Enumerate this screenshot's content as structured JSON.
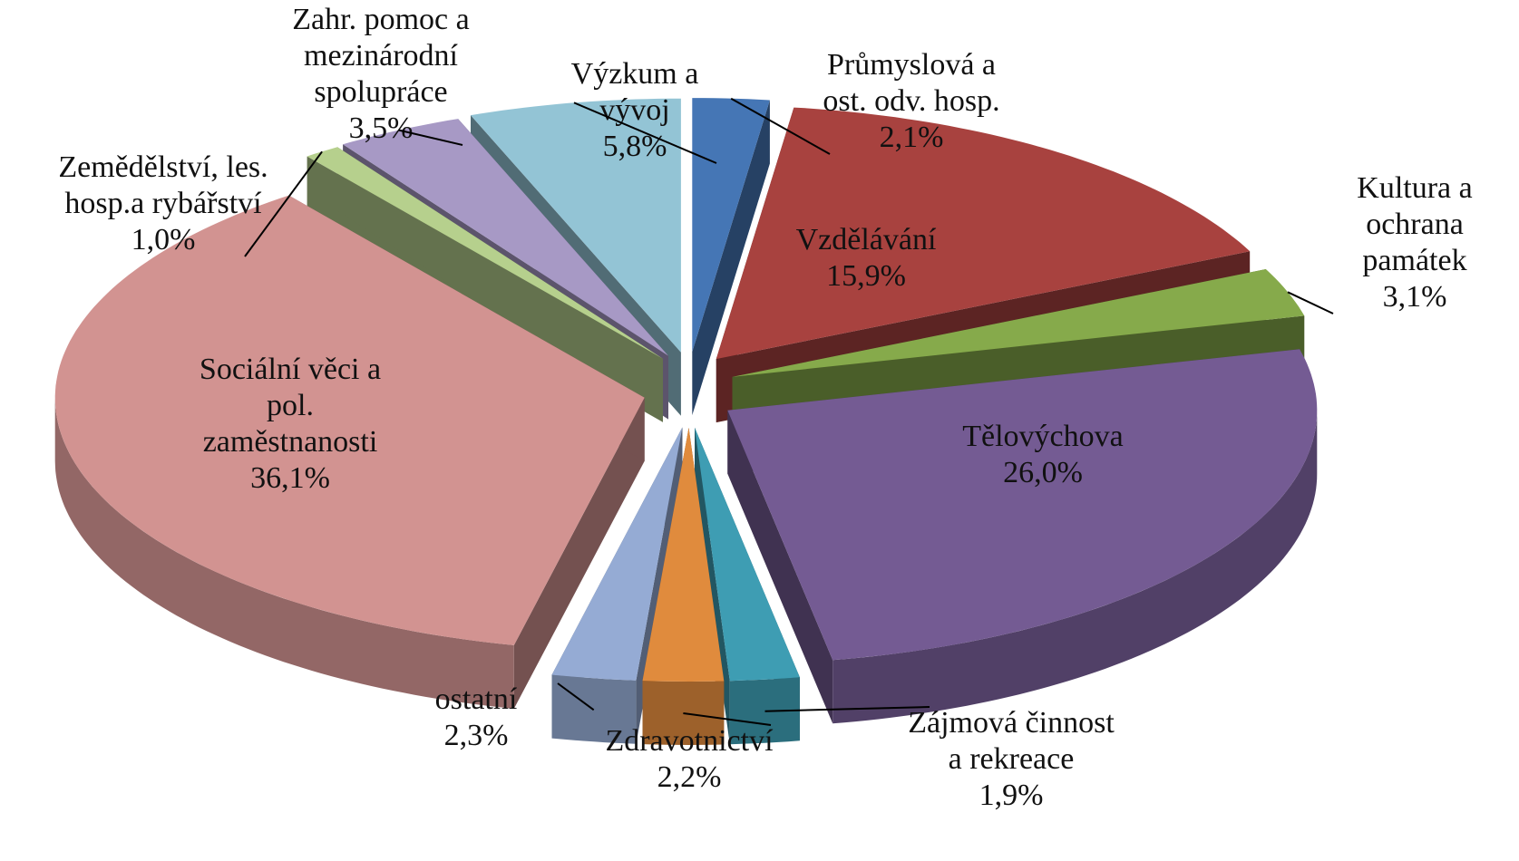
{
  "chart_data": {
    "type": "pie",
    "categories": [
      "Průmyslová a\nost. odv. hosp.",
      "Vzdělávání",
      "Kultura a\nochrana\npamátek",
      "Tělovýchova",
      "Zájmová činnost\na rekreace",
      "Zdravotnictví",
      "ostatní",
      "Sociální věci a\npol.\nzaměstnanosti",
      "Zemědělství, les.\nhosp.a rybářství",
      "Zahr. pomoc a\nmezinárodní\nspolupráce",
      "Výzkum a\nvývoj"
    ],
    "values": [
      2.1,
      15.9,
      3.1,
      26.0,
      1.9,
      2.2,
      2.3,
      36.1,
      1.0,
      3.5,
      5.8
    ],
    "value_labels": [
      "2,1%",
      "15,9%",
      "3,1%",
      "26,0%",
      "1,9%",
      "2,2%",
      "2,3%",
      "36,1%",
      "1,0%",
      "3,5%",
      "5,8%"
    ],
    "colors": [
      "#4576b5",
      "#a8423f",
      "#86aa4b",
      "#745b93",
      "#3e9db3",
      "#e08b3d",
      "#95abd4",
      "#d29391",
      "#b6d08d",
      "#a799c5",
      "#93c4d5"
    ]
  }
}
